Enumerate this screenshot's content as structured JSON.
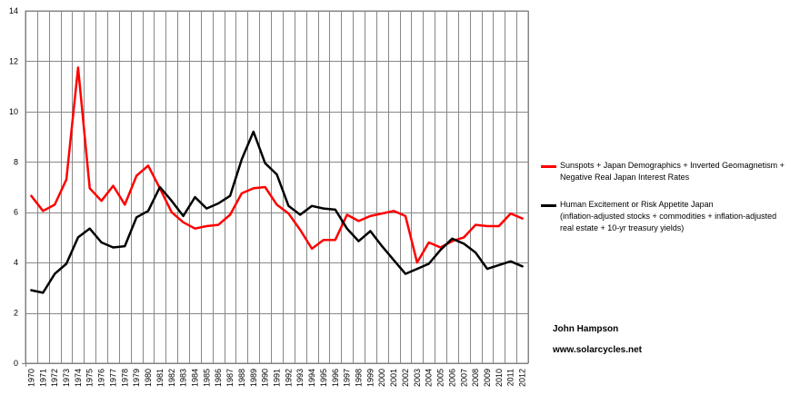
{
  "chart_data": {
    "type": "line",
    "title": "",
    "xlabel": "",
    "ylabel": "",
    "ylim": [
      0,
      14
    ],
    "yticks": [
      0,
      2,
      4,
      6,
      8,
      10,
      12,
      14
    ],
    "grid": true,
    "legend_position": "right",
    "x": [
      "1970",
      "1971",
      "1972",
      "1973",
      "1974",
      "1975",
      "1976",
      "1977",
      "1978",
      "1979",
      "1980",
      "1981",
      "1982",
      "1983",
      "1984",
      "1985",
      "1986",
      "1987",
      "1988",
      "1989",
      "1990",
      "1991",
      "1992",
      "1993",
      "1994",
      "1995",
      "1996",
      "1997",
      "1998",
      "1999",
      "2000",
      "2001",
      "2002",
      "2003",
      "2004",
      "2005",
      "2006",
      "2007",
      "2008",
      "2009",
      "2010",
      "2011",
      "2012"
    ],
    "series": [
      {
        "name": "Sunspots + Japan Demographics + Inverted Geomagnetism + Negative Real Japan Interest Rates",
        "color": "#ff0000",
        "values": [
          6.65,
          6.05,
          6.3,
          7.3,
          11.75,
          6.95,
          6.45,
          7.05,
          6.3,
          7.45,
          7.85,
          6.95,
          6.0,
          5.6,
          5.35,
          5.45,
          5.5,
          5.9,
          6.75,
          6.95,
          7.0,
          6.3,
          5.95,
          5.3,
          4.55,
          4.9,
          4.9,
          5.9,
          5.65,
          5.85,
          5.95,
          6.05,
          5.85,
          4.0,
          4.8,
          4.6,
          4.85,
          5.0,
          5.5,
          5.45,
          5.45,
          5.95,
          5.75
        ]
      },
      {
        "name": "Human Excitement or Risk Appetite Japan (inflation-adjusted stocks + commodities + inflation-adjusted real estate + 10-yr treasury yields)",
        "color": "#000000",
        "values": [
          2.9,
          2.8,
          3.55,
          3.95,
          5.0,
          5.35,
          4.8,
          4.6,
          4.65,
          5.8,
          6.05,
          7.0,
          6.45,
          5.85,
          6.6,
          6.15,
          6.35,
          6.65,
          8.1,
          9.2,
          7.95,
          7.5,
          6.25,
          5.9,
          6.25,
          6.15,
          6.1,
          5.35,
          4.85,
          5.25,
          4.65,
          4.1,
          3.55,
          3.75,
          3.95,
          4.5,
          4.95,
          4.75,
          4.4,
          3.75,
          3.9,
          4.05,
          3.85
        ]
      }
    ]
  },
  "legend": {
    "red_lines": [
      "Sunspots + Japan Demographics + Inverted Geomagnetism +",
      "Negative Real Japan Interest Rates"
    ],
    "black_lines": [
      "Human Excitement or Risk Appetite Japan",
      "(inflation-adjusted stocks + commodities + inflation-adjusted",
      "real estate + 10-yr treasury yields)"
    ]
  },
  "annotations": {
    "author": "John Hampson",
    "website": "www.solarcycles.net"
  }
}
